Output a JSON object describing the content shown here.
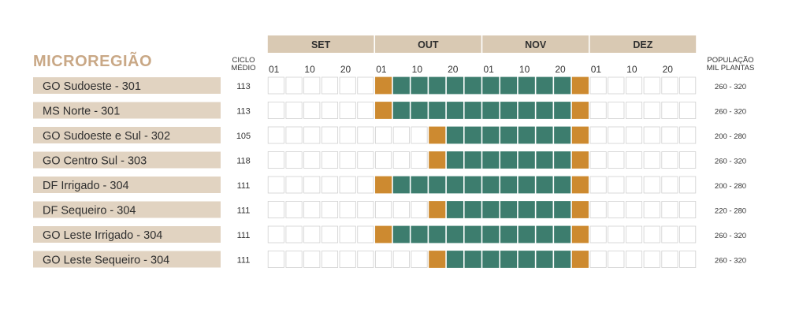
{
  "chart_data": {
    "type": "table",
    "title": "MICROREGIÃO",
    "cycle_header": [
      "CICLO",
      "MÉDIO"
    ],
    "population_header": [
      "POPULAÇÃO",
      "MIL PLANTAS"
    ],
    "months": [
      "SET",
      "OUT",
      "NOV",
      "DEZ"
    ],
    "day_ticks": [
      "01",
      "10",
      "20"
    ],
    "columns_per_month": 6,
    "rows": [
      {
        "region": "GO Sudoeste - 301",
        "cycle": "113",
        "population": "260 - 320",
        "cells": [
          "empty",
          "empty",
          "empty",
          "empty",
          "empty",
          "empty",
          "edge",
          "core",
          "core",
          "core",
          "core",
          "core",
          "core",
          "core",
          "core",
          "core",
          "core",
          "edge",
          "empty",
          "empty",
          "empty",
          "empty",
          "empty",
          "empty"
        ]
      },
      {
        "region": "MS Norte - 301",
        "cycle": "113",
        "population": "260 - 320",
        "cells": [
          "empty",
          "empty",
          "empty",
          "empty",
          "empty",
          "empty",
          "edge",
          "core",
          "core",
          "core",
          "core",
          "core",
          "core",
          "core",
          "core",
          "core",
          "core",
          "edge",
          "empty",
          "empty",
          "empty",
          "empty",
          "empty",
          "empty"
        ]
      },
      {
        "region": "GO Sudoeste e Sul - 302",
        "cycle": "105",
        "population": "200 - 280",
        "cells": [
          "empty",
          "empty",
          "empty",
          "empty",
          "empty",
          "empty",
          "empty",
          "empty",
          "empty",
          "edge",
          "core",
          "core",
          "core",
          "core",
          "core",
          "core",
          "core",
          "edge",
          "empty",
          "empty",
          "empty",
          "empty",
          "empty",
          "empty"
        ]
      },
      {
        "region": "GO Centro Sul - 303",
        "cycle": "118",
        "population": "260 - 320",
        "cells": [
          "empty",
          "empty",
          "empty",
          "empty",
          "empty",
          "empty",
          "empty",
          "empty",
          "empty",
          "edge",
          "core",
          "core",
          "core",
          "core",
          "core",
          "core",
          "core",
          "edge",
          "empty",
          "empty",
          "empty",
          "empty",
          "empty",
          "empty"
        ]
      },
      {
        "region": "DF Irrigado - 304",
        "cycle": "111",
        "population": "200 - 280",
        "cells": [
          "empty",
          "empty",
          "empty",
          "empty",
          "empty",
          "empty",
          "edge",
          "core",
          "core",
          "core",
          "core",
          "core",
          "core",
          "core",
          "core",
          "core",
          "core",
          "edge",
          "empty",
          "empty",
          "empty",
          "empty",
          "empty",
          "empty"
        ]
      },
      {
        "region": "DF Sequeiro - 304",
        "cycle": "111",
        "population": "220 - 280",
        "cells": [
          "empty",
          "empty",
          "empty",
          "empty",
          "empty",
          "empty",
          "empty",
          "empty",
          "empty",
          "edge",
          "core",
          "core",
          "core",
          "core",
          "core",
          "core",
          "core",
          "edge",
          "empty",
          "empty",
          "empty",
          "empty",
          "empty",
          "empty"
        ]
      },
      {
        "region": "GO Leste Irrigado - 304",
        "cycle": "111",
        "population": "260 - 320",
        "cells": [
          "empty",
          "empty",
          "empty",
          "empty",
          "empty",
          "empty",
          "edge",
          "core",
          "core",
          "core",
          "core",
          "core",
          "core",
          "core",
          "core",
          "core",
          "core",
          "edge",
          "empty",
          "empty",
          "empty",
          "empty",
          "empty",
          "empty"
        ]
      },
      {
        "region": "GO Leste Sequeiro - 304",
        "cycle": "111",
        "population": "260 - 320",
        "cells": [
          "empty",
          "empty",
          "empty",
          "empty",
          "empty",
          "empty",
          "empty",
          "empty",
          "empty",
          "edge",
          "core",
          "core",
          "core",
          "core",
          "core",
          "core",
          "core",
          "edge",
          "empty",
          "empty",
          "empty",
          "empty",
          "empty",
          "empty"
        ]
      }
    ],
    "colors": {
      "header_fill": "#d9c9b3",
      "label_fill": "#e1d3c1",
      "title_text": "#c9a886",
      "core": "#3d7d6e",
      "edge": "#cd8a30",
      "empty_border": "#d0d0d0",
      "empty_fill": "#ffffff"
    }
  }
}
